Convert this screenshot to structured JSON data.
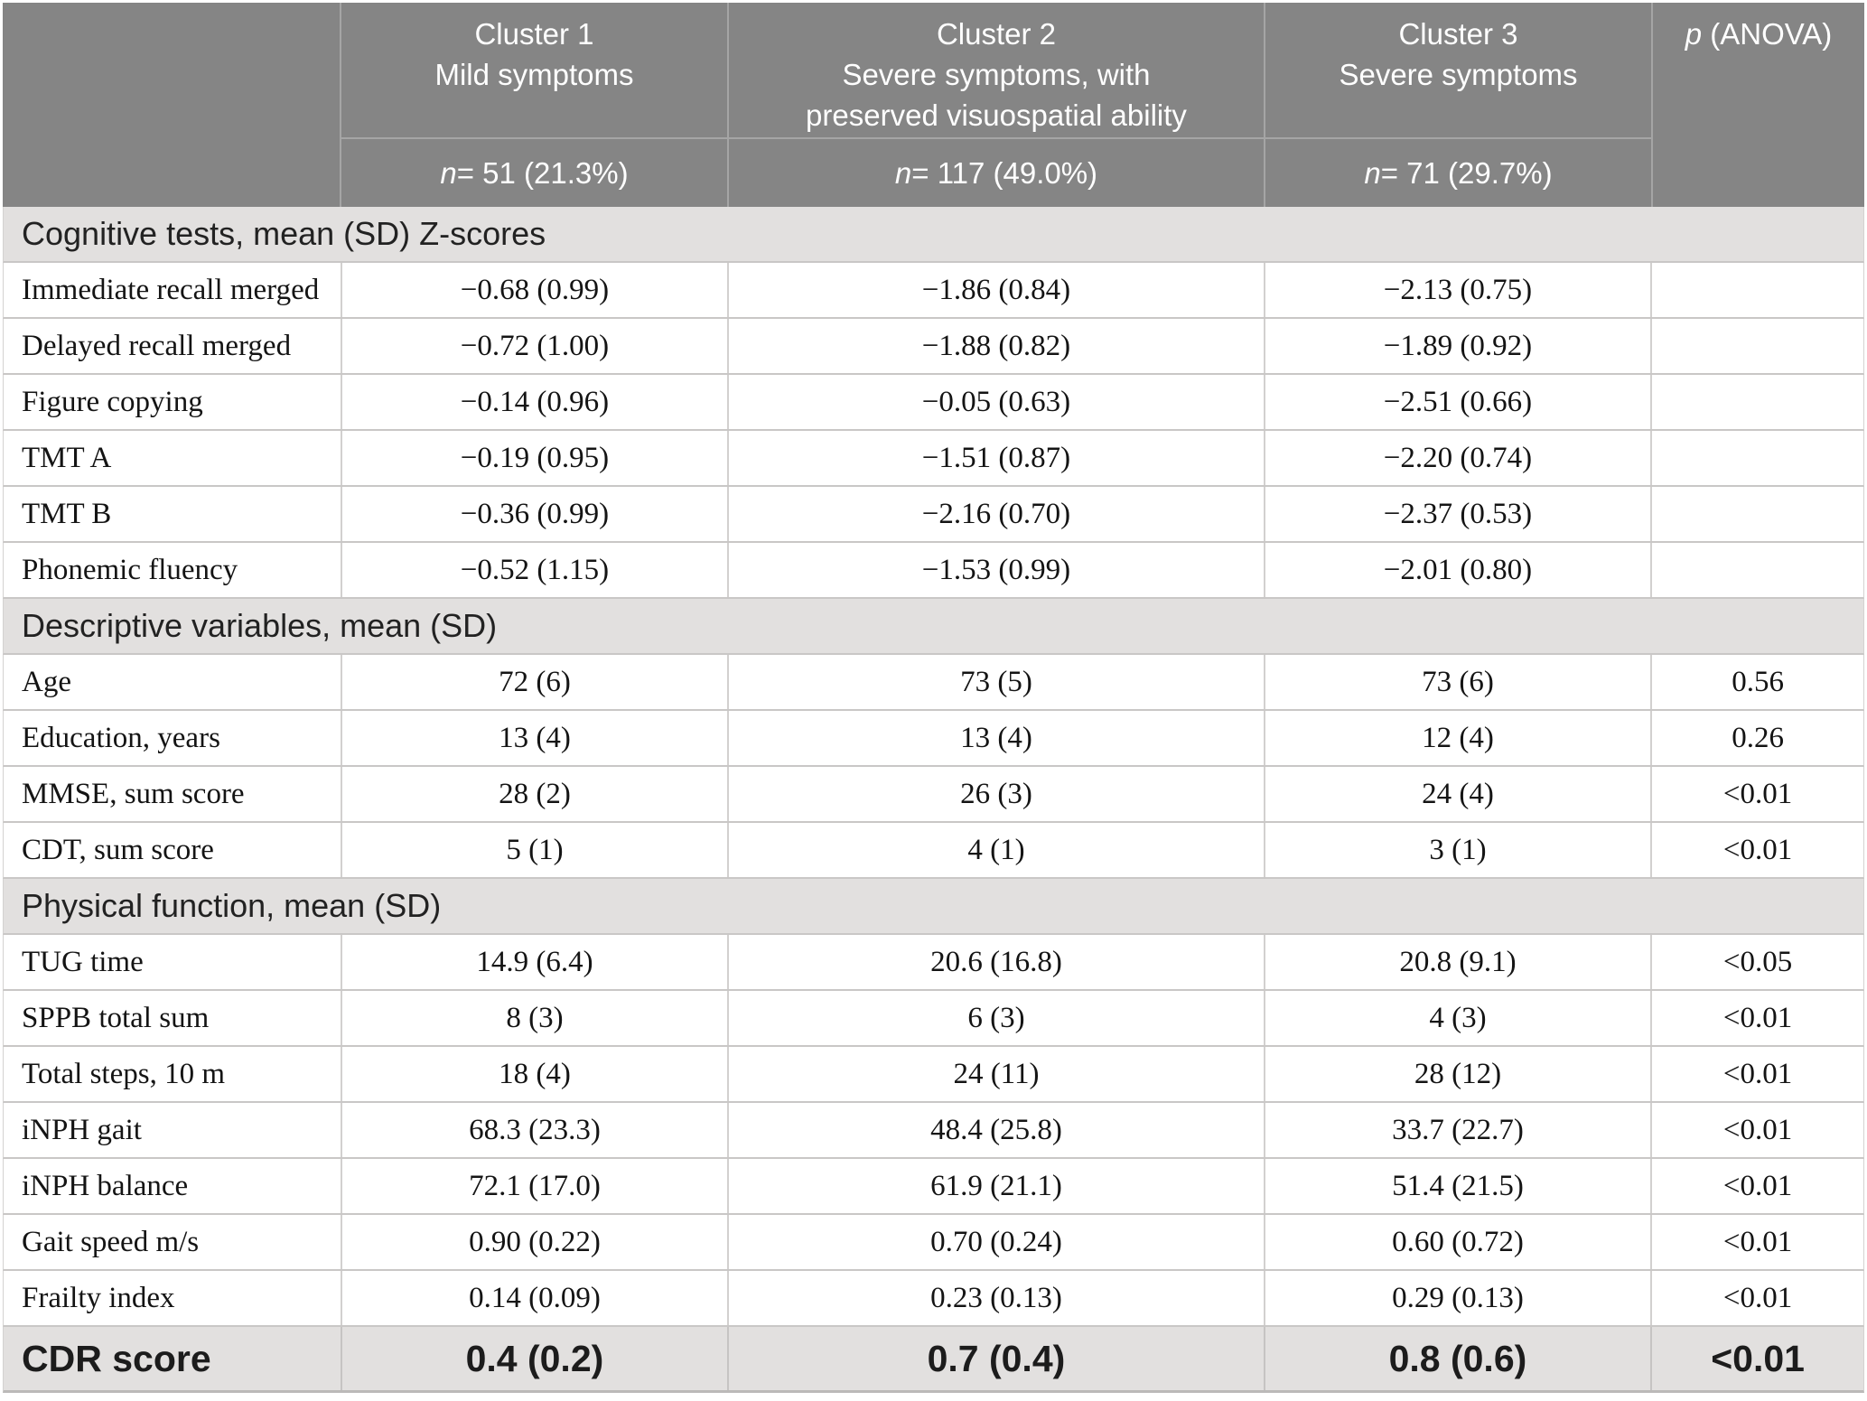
{
  "colors": {
    "header_bg": "#858585",
    "header_text": "#ffffff",
    "header_divider": "#a5a5a5",
    "section_bg": "#e2e0df",
    "row_border": "#c9c7c6",
    "body_text": "#141414"
  },
  "table": {
    "header": {
      "p_italic": "p",
      "p_rest": "(ANOVA)",
      "clusters": [
        {
          "line1": "Cluster 1",
          "line2": "Mild symptoms",
          "n_italic": "n",
          "n_rest": "= 51 (21.3%)"
        },
        {
          "line1": "Cluster 2",
          "line2": "Severe symptoms, with",
          "line3": "preserved visuospatial ability",
          "n_italic": "n",
          "n_rest": "= 117 (49.0%)"
        },
        {
          "line1": "Cluster 3",
          "line2": "Severe symptoms",
          "n_italic": "n",
          "n_rest": "= 71 (29.7%)"
        }
      ]
    },
    "sections": [
      {
        "title": "Cognitive tests, mean (SD) Z-scores",
        "rows": [
          {
            "label": "Immediate recall merged",
            "c1": "−0.68 (0.99)",
            "c2": "−1.86 (0.84)",
            "c3": "−2.13 (0.75)",
            "p": ""
          },
          {
            "label": "Delayed recall merged",
            "c1": "−0.72 (1.00)",
            "c2": "−1.88 (0.82)",
            "c3": "−1.89 (0.92)",
            "p": ""
          },
          {
            "label": "Figure copying",
            "c1": "−0.14 (0.96)",
            "c2": "−0.05 (0.63)",
            "c3": "−2.51 (0.66)",
            "p": ""
          },
          {
            "label": "TMT A",
            "c1": "−0.19 (0.95)",
            "c2": "−1.51 (0.87)",
            "c3": "−2.20 (0.74)",
            "p": ""
          },
          {
            "label": "TMT B",
            "c1": "−0.36 (0.99)",
            "c2": "−2.16 (0.70)",
            "c3": "−2.37 (0.53)",
            "p": ""
          },
          {
            "label": "Phonemic fluency",
            "c1": "−0.52 (1.15)",
            "c2": "−1.53 (0.99)",
            "c3": "−2.01 (0.80)",
            "p": ""
          }
        ]
      },
      {
        "title": "Descriptive variables, mean (SD)",
        "rows": [
          {
            "label": "Age",
            "c1": "72 (6)",
            "c2": "73 (5)",
            "c3": "73 (6)",
            "p": "0.56"
          },
          {
            "label": "Education, years",
            "c1": "13 (4)",
            "c2": "13 (4)",
            "c3": "12 (4)",
            "p": "0.26"
          },
          {
            "label": "MMSE, sum score",
            "c1": "28 (2)",
            "c2": "26 (3)",
            "c3": "24 (4)",
            "p": "<0.01"
          },
          {
            "label": "CDT, sum score",
            "c1": "5 (1)",
            "c2": "4 (1)",
            "c3": "3 (1)",
            "p": "<0.01"
          }
        ]
      },
      {
        "title": "Physical function, mean (SD)",
        "rows": [
          {
            "label": "TUG time",
            "c1": "14.9 (6.4)",
            "c2": "20.6 (16.8)",
            "c3": "20.8 (9.1)",
            "p": "<0.05"
          },
          {
            "label": "SPPB total sum",
            "c1": "8 (3)",
            "c2": "6 (3)",
            "c3": "4 (3)",
            "p": "<0.01"
          },
          {
            "label": "Total steps, 10 m",
            "c1": "18 (4)",
            "c2": "24 (11)",
            "c3": "28 (12)",
            "p": "<0.01"
          },
          {
            "label": "iNPH gait",
            "c1": "68.3 (23.3)",
            "c2": "48.4 (25.8)",
            "c3": "33.7 (22.7)",
            "p": "<0.01"
          },
          {
            "label": "iNPH balance",
            "c1": "72.1 (17.0)",
            "c2": "61.9 (21.1)",
            "c3": "51.4 (21.5)",
            "p": "<0.01"
          },
          {
            "label": "Gait speed m/s",
            "c1": "0.90 (0.22)",
            "c2": "0.70 (0.24)",
            "c3": "0.60 (0.72)",
            "p": "<0.01"
          },
          {
            "label": "Frailty index",
            "c1": "0.14 (0.09)",
            "c2": "0.23 (0.13)",
            "c3": "0.29 (0.13)",
            "p": "<0.01"
          }
        ]
      }
    ],
    "footer_row": {
      "label": "CDR score",
      "c1": "0.4 (0.2)",
      "c2": "0.7 (0.4)",
      "c3": "0.8 (0.6)",
      "p": "<0.01"
    }
  }
}
